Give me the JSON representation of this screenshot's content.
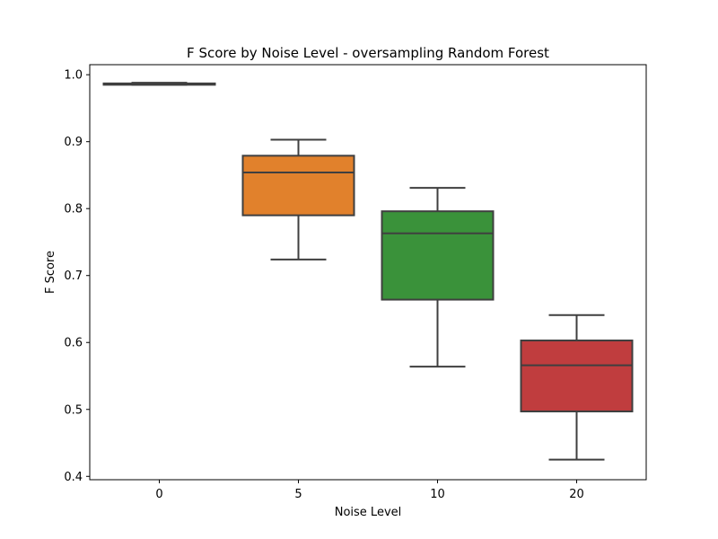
{
  "chart_data": {
    "type": "box",
    "title": "F Score by Noise Level - oversampling Random Forest",
    "xlabel": "Noise Level",
    "ylabel": "F Score",
    "ylim": [
      0.395,
      1.015
    ],
    "yticks": [
      0.4,
      0.5,
      0.6,
      0.7,
      0.8,
      0.9,
      1.0
    ],
    "ytick_labels": [
      "0.4",
      "0.5",
      "0.6",
      "0.7",
      "0.8",
      "0.9",
      "1.0"
    ],
    "grid": false,
    "categories": [
      "0",
      "5",
      "10",
      "20"
    ],
    "boxes": [
      {
        "category": "0",
        "whisker_low": 0.985,
        "q1": 0.985,
        "median": 0.986,
        "q3": 0.987,
        "whisker_high": 0.988,
        "color": "#3a75af"
      },
      {
        "category": "5",
        "whisker_low": 0.724,
        "q1": 0.79,
        "median": 0.854,
        "q3": 0.879,
        "whisker_high": 0.903,
        "color": "#e1812c"
      },
      {
        "category": "10",
        "whisker_low": 0.564,
        "q1": 0.664,
        "median": 0.763,
        "q3": 0.796,
        "whisker_high": 0.831,
        "color": "#3a923a"
      },
      {
        "category": "20",
        "whisker_low": 0.425,
        "q1": 0.497,
        "median": 0.566,
        "q3": 0.603,
        "whisker_high": 0.641,
        "color": "#c03d3e"
      }
    ]
  }
}
